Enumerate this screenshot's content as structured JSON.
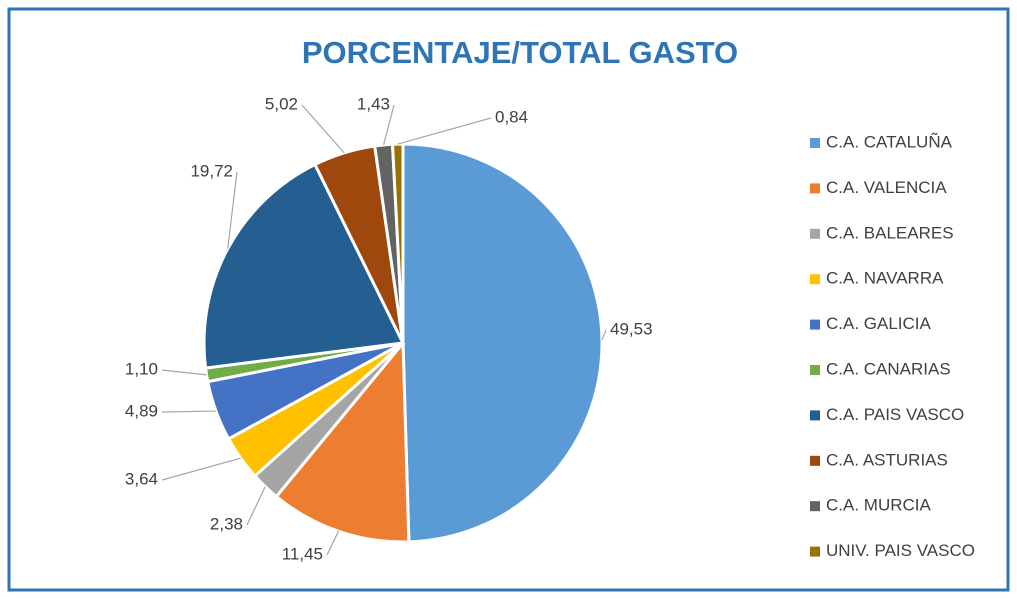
{
  "chart_data": {
    "type": "pie",
    "title": "PORCENTAJE/TOTAL GASTO",
    "categories": [
      "C.A. CATALUÑA",
      "C.A. VALENCIA",
      "C.A. BALEARES",
      "C.A. NAVARRA",
      "C.A. GALICIA",
      "C.A. CANARIAS",
      "C.A. PAIS VASCO",
      "C.A. ASTURIAS",
      "C.A. MURCIA",
      "UNIV. PAIS VASCO"
    ],
    "values": [
      49.53,
      11.45,
      2.38,
      3.64,
      4.89,
      1.1,
      19.72,
      5.02,
      1.43,
      0.84
    ],
    "value_labels": [
      "49,53",
      "11,45",
      "2,38",
      "3,64",
      "4,89",
      "1,10",
      "19,72",
      "5,02",
      "1,43",
      "0,84"
    ],
    "colors": [
      "#5B9BD5",
      "#ED7D31",
      "#A5A5A5",
      "#FFC000",
      "#4472C4",
      "#70AD47",
      "#255E91",
      "#9E480E",
      "#636363",
      "#997300"
    ],
    "legend": "right"
  }
}
